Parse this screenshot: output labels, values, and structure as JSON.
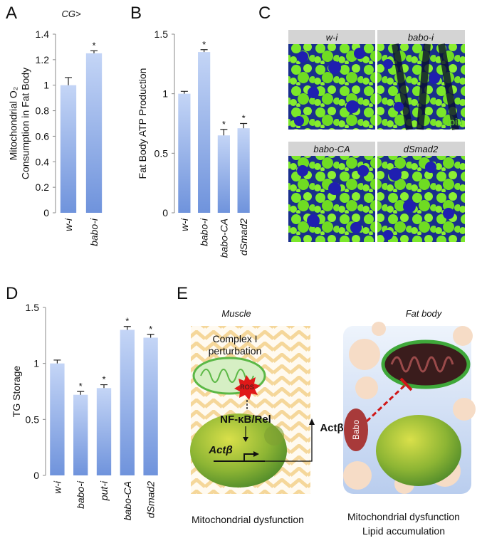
{
  "panel_labels": [
    "A",
    "B",
    "C",
    "D",
    "E"
  ],
  "chart_data": [
    {
      "type": "bar",
      "annotation": "CG>",
      "y_label": [
        "Mitochondrial O₂",
        "Consumption in Fat Body"
      ],
      "categories": [
        "w-i",
        "babo-i"
      ],
      "values": [
        1,
        1.25
      ],
      "errors": [
        0.06,
        0.02
      ],
      "markers": [
        null,
        "*"
      ],
      "color": "#6f93dc",
      "ylim": [
        0,
        1.4
      ],
      "yticks": [
        0,
        0.2,
        0.4,
        0.6,
        0.8,
        1,
        1.2,
        1.4
      ]
    },
    {
      "type": "bar",
      "y_label": [
        "Fat Body ATP Production"
      ],
      "categories": [
        "w-i",
        "babo-i",
        "babo-CA",
        "dSmad2"
      ],
      "values": [
        1,
        1.35,
        0.65,
        0.71
      ],
      "errors": [
        0.02,
        0.02,
        0.05,
        0.04
      ],
      "markers": [
        null,
        "*",
        "*",
        "*"
      ],
      "color": "#6f93dc",
      "ylim": [
        0,
        1.5
      ],
      "yticks": [
        0,
        0.5,
        1,
        1.5
      ]
    },
    {
      "type": "bar",
      "y_label": [
        "TG Storage"
      ],
      "categories": [
        "w-i",
        "babo-i",
        "put-i",
        "babo-CA",
        "dSmad2"
      ],
      "values": [
        1,
        0.72,
        0.78,
        1.3,
        1.23
      ],
      "errors": [
        0.03,
        0.03,
        0.03,
        0.03,
        0.03
      ],
      "markers": [
        null,
        "*",
        "*",
        "*",
        "*"
      ],
      "color": "#6f93dc",
      "ylim": [
        0,
        1.5
      ],
      "yticks": [
        0,
        0.5,
        1,
        1.5
      ]
    }
  ],
  "micrographs": {
    "labels": [
      "w-i",
      "babo-i",
      "babo-CA",
      "dSmad2"
    ],
    "stain_label": "Lipid"
  },
  "diagram": {
    "muscle_title": "Muscle",
    "fat_title": "Fat body",
    "complex": [
      "Complex I",
      "perturbation"
    ],
    "ros": "ROS",
    "nfkb": "NF-κB/Rel",
    "act_gene": "Actβ",
    "act_protein": "Actβ",
    "babo": "Babo",
    "muscle_caption": "Mitochondrial dysfunction",
    "fat_caption": [
      "Mitochondrial dysfunction",
      "Lipid accumulation"
    ]
  }
}
